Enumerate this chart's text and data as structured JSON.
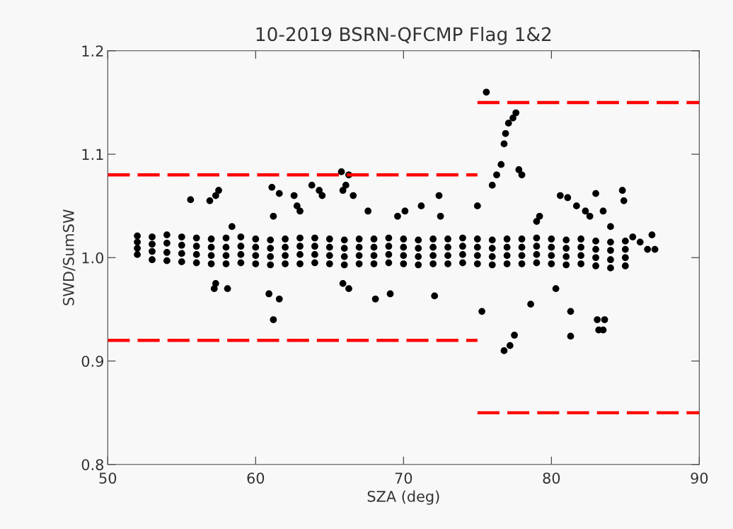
{
  "chart_data": {
    "type": "scatter",
    "title": "10-2019 BSRN-QFCMP Flag 1&2",
    "xlabel": "SZA (deg)",
    "ylabel": "SWD/SumSW",
    "xlim": [
      50,
      90
    ],
    "ylim": [
      0.8,
      1.2
    ],
    "xticks": [
      50,
      60,
      70,
      80,
      90
    ],
    "yticks": [
      {
        "value": 0.8,
        "label": "0.8"
      },
      {
        "value": 0.9,
        "label": "0.9"
      },
      {
        "value": 1.0,
        "label": "1.0"
      },
      {
        "value": 1.1,
        "label": "1.1"
      },
      {
        "value": 1.2,
        "label": "1.2"
      }
    ],
    "grid": false,
    "legend": false,
    "series": [
      {
        "color": "#000000",
        "marker": "circle",
        "x": [
          52,
          52,
          52,
          52,
          53,
          53,
          53,
          53,
          54,
          54,
          54,
          54,
          55,
          55,
          55,
          55,
          56,
          56,
          56,
          56,
          57,
          57,
          57,
          57,
          58,
          58,
          58,
          58,
          59,
          59,
          59,
          59,
          60,
          60,
          60,
          60,
          61,
          61,
          61,
          61,
          62,
          62,
          62,
          62,
          63,
          63,
          63,
          63,
          64,
          64,
          64,
          64,
          65,
          65,
          65,
          65,
          66,
          66,
          66,
          66,
          67,
          67,
          67,
          67,
          68,
          68,
          68,
          68,
          69,
          69,
          69,
          69,
          70,
          70,
          70,
          70,
          71,
          71,
          71,
          71,
          72,
          72,
          72,
          72,
          73,
          73,
          73,
          73,
          74,
          74,
          74,
          74,
          75,
          75,
          75,
          75,
          76,
          76,
          76,
          76,
          77,
          77,
          77,
          77,
          78,
          78,
          78,
          78,
          79,
          79,
          79,
          79,
          80,
          80,
          80,
          80,
          81,
          81,
          81,
          81,
          82,
          82,
          82,
          82,
          83,
          83,
          83,
          83,
          84,
          84,
          84,
          84,
          85,
          85,
          85,
          85
        ],
        "values": [
          1.003,
          1.009,
          1.015,
          1.021,
          0.998,
          1.006,
          1.013,
          1.02,
          0.997,
          1.005,
          1.014,
          1.022,
          0.996,
          1.004,
          1.012,
          1.02,
          0.995,
          1.003,
          1.011,
          1.019,
          0.994,
          1.002,
          1.01,
          1.018,
          0.994,
          1.002,
          1.01,
          1.019,
          0.995,
          1.003,
          1.011,
          1.02,
          0.994,
          1.002,
          1.01,
          1.018,
          0.993,
          1.001,
          1.009,
          1.017,
          0.994,
          1.002,
          1.01,
          1.018,
          0.994,
          1.003,
          1.011,
          1.019,
          0.995,
          1.003,
          1.011,
          1.019,
          0.994,
          1.002,
          1.01,
          1.018,
          0.993,
          1.001,
          1.009,
          1.017,
          0.994,
          1.002,
          1.01,
          1.018,
          0.994,
          1.002,
          1.01,
          1.018,
          0.995,
          1.003,
          1.011,
          1.019,
          0.994,
          1.002,
          1.01,
          1.018,
          0.993,
          1.001,
          1.009,
          1.017,
          0.994,
          1.002,
          1.01,
          1.018,
          0.994,
          1.002,
          1.01,
          1.018,
          0.995,
          1.003,
          1.011,
          1.019,
          0.994,
          1.002,
          1.01,
          1.018,
          0.993,
          1.001,
          1.009,
          1.017,
          0.994,
          1.002,
          1.01,
          1.018,
          0.994,
          1.002,
          1.01,
          1.018,
          0.995,
          1.003,
          1.011,
          1.019,
          0.994,
          1.002,
          1.01,
          1.018,
          0.993,
          1.001,
          1.009,
          1.017,
          0.994,
          1.002,
          1.01,
          1.018,
          0.992,
          1.0,
          1.008,
          1.016,
          0.99,
          0.998,
          1.007,
          1.015,
          0.992,
          1.0,
          1.008,
          1.016
        ]
      },
      {
        "color": "#000000",
        "marker": "circle",
        "x": [
          75.6,
          76.0,
          76.3,
          76.6,
          76.8,
          76.9,
          77.1,
          77.4,
          77.6,
          77.8,
          78.0,
          76.8,
          77.2,
          77.5,
          75.3,
          78.6,
          81.3,
          81.3,
          83.1,
          83.2,
          83.5,
          83.6,
          72.1,
          80.3,
          61.2,
          60.9,
          61.6,
          57.2,
          57.3,
          58.1,
          68.1,
          65.9,
          66.3,
          69.1,
          65.8,
          66.3,
          66.1,
          65.9,
          66.6,
          63.8,
          64.3,
          64.5,
          61.1,
          57.5,
          57.3,
          55.6,
          56.9,
          62.6,
          62.8,
          63.0,
          58.4,
          61.6,
          72.4,
          71.2,
          61.2,
          67.6,
          69.6,
          80.6,
          81.1,
          83.0,
          84.8,
          84.9,
          81.7,
          82.3,
          79.2,
          79.0,
          82.6,
          83.5,
          84.0,
          70.1,
          72.5,
          75.0,
          85.5,
          86.0,
          86.5,
          86.8,
          87.0
        ],
        "values": [
          1.16,
          1.07,
          1.08,
          1.09,
          1.11,
          1.12,
          1.13,
          1.135,
          1.14,
          1.085,
          1.08,
          0.91,
          0.915,
          0.925,
          0.948,
          0.955,
          0.924,
          0.948,
          0.94,
          0.93,
          0.93,
          0.94,
          0.963,
          0.97,
          0.94,
          0.965,
          0.96,
          0.97,
          0.975,
          0.97,
          0.96,
          0.975,
          0.97,
          0.965,
          1.083,
          1.08,
          1.07,
          1.065,
          1.06,
          1.07,
          1.065,
          1.06,
          1.068,
          1.065,
          1.06,
          1.056,
          1.055,
          1.06,
          1.05,
          1.045,
          1.03,
          1.062,
          1.06,
          1.05,
          1.04,
          1.045,
          1.04,
          1.06,
          1.058,
          1.062,
          1.065,
          1.055,
          1.05,
          1.045,
          1.04,
          1.035,
          1.04,
          1.045,
          1.03,
          1.045,
          1.04,
          1.05,
          1.02,
          1.015,
          1.008,
          1.022,
          1.008
        ]
      },
      {
        "type": "line",
        "color": "#ff0000",
        "line_style": "dashed",
        "marker": "none",
        "x": [
          50,
          75
        ],
        "values": [
          1.08,
          1.08
        ]
      },
      {
        "type": "line",
        "color": "#ff0000",
        "line_style": "dashed",
        "marker": "none",
        "x": [
          50,
          75
        ],
        "values": [
          0.92,
          0.92
        ]
      },
      {
        "type": "line",
        "color": "#ff0000",
        "line_style": "dashed",
        "marker": "none",
        "x": [
          75,
          90
        ],
        "values": [
          1.15,
          1.15
        ]
      },
      {
        "type": "line",
        "color": "#ff0000",
        "line_style": "dashed",
        "marker": "none",
        "x": [
          75,
          90
        ],
        "values": [
          0.85,
          0.85
        ]
      }
    ]
  }
}
